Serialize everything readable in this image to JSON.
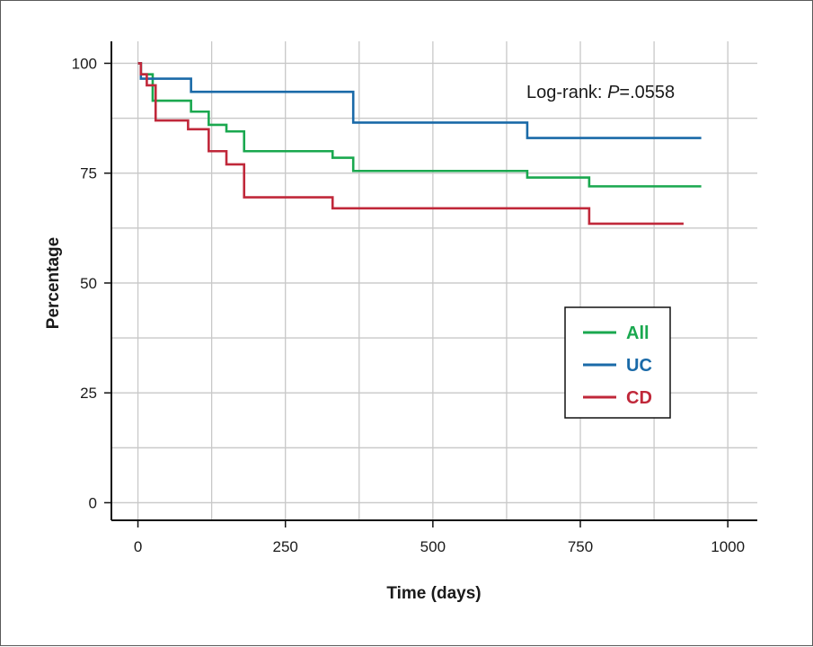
{
  "chart_data": {
    "type": "line",
    "step": true,
    "title": "",
    "xlabel": "Time (days)",
    "ylabel": "Percentage",
    "xlim": [
      -45,
      1050
    ],
    "ylim": [
      -4,
      105
    ],
    "x_ticks": [
      0,
      250,
      500,
      750,
      1000
    ],
    "y_ticks": [
      0,
      25,
      50,
      75,
      100
    ],
    "x_tick_labels": [
      "0",
      "250",
      "500",
      "750",
      "1000"
    ],
    "y_tick_labels": [
      "0",
      "25",
      "50",
      "75",
      "100"
    ],
    "grid": true,
    "legend_position": "center-right",
    "annotation": {
      "prefix": "Log-rank: ",
      "italic": "P",
      "suffix": "=.0558"
    },
    "series": [
      {
        "name": "All",
        "color": "#1aa84f",
        "x": [
          0,
          5,
          25,
          90,
          120,
          150,
          180,
          330,
          365,
          660,
          765,
          955
        ],
        "y": [
          100,
          97.5,
          91.5,
          89,
          86,
          84.5,
          80,
          78.5,
          75.5,
          74,
          72,
          72
        ]
      },
      {
        "name": "UC",
        "color": "#1a6aa8",
        "x": [
          0,
          5,
          90,
          365,
          660,
          955
        ],
        "y": [
          100,
          96.5,
          93.5,
          86.5,
          83,
          83
        ]
      },
      {
        "name": "CD",
        "color": "#c0283a",
        "x": [
          0,
          5,
          15,
          30,
          85,
          120,
          150,
          180,
          330,
          765,
          925
        ],
        "y": [
          100,
          97.5,
          95,
          87,
          85,
          80,
          77,
          69.5,
          67,
          63.5,
          63.5
        ]
      }
    ]
  }
}
